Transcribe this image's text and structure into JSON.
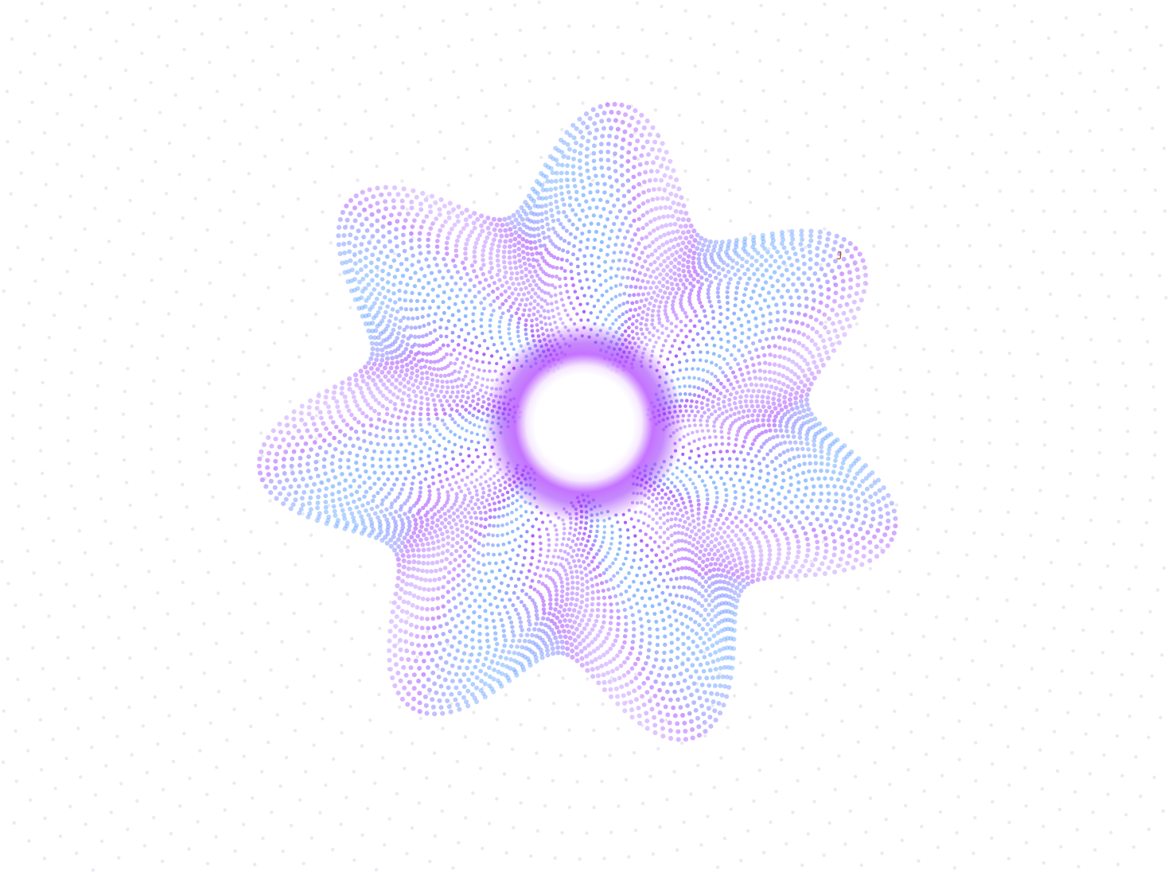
{
  "scene": {
    "description_label": "",
    "cursor_glyph": "J"
  },
  "palette": {
    "background": "#ffffff",
    "violet": "#9b30ff",
    "blue": "#5aa0ff",
    "lavender": "#c6a8ff",
    "grid_dot": "#d9d9e6",
    "cursor": "#c0461f"
  }
}
